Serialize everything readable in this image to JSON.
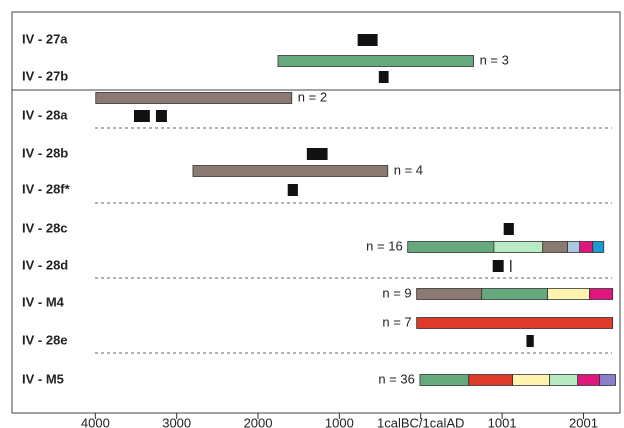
{
  "chart_data": {
    "type": "timeline",
    "xlim": [
      -5000,
      2450
    ],
    "xticks": [
      {
        "value": -4000,
        "label": "4000"
      },
      {
        "value": -3000,
        "label": "3000"
      },
      {
        "value": -2000,
        "label": "2000"
      },
      {
        "value": -1000,
        "label": "1000"
      },
      {
        "value": 0,
        "label": "1calBC/1calAD"
      },
      1001,
      2001
    ],
    "rows": [
      {
        "label": "IV - 27a",
        "dates": [
          [
            -775,
            -530
          ]
        ]
      },
      {
        "label": "IV - 27b",
        "dates": [
          [
            -515,
            -395
          ]
        ]
      },
      {
        "label": "IV - 28a",
        "dates": [
          [
            -3525,
            -3330
          ],
          [
            -3255,
            -3120
          ]
        ]
      },
      {
        "label": "IV - 28b",
        "dates": [
          [
            -1400,
            -1145
          ]
        ]
      },
      {
        "label": "IV - 28f*",
        "dates": [
          [
            -1635,
            -1510
          ]
        ]
      },
      {
        "label": "IV - 28c",
        "dates": [
          [
            1020,
            1145
          ]
        ]
      },
      {
        "label": "IV - 28d",
        "dates": [
          [
            885,
            1020
          ],
          [
            1100,
            1115
          ]
        ]
      },
      {
        "label": "IV - M4",
        "dates": []
      },
      {
        "label": "IV - 28e",
        "dates": [
          [
            1300,
            1390
          ]
        ]
      },
      {
        "label": "IV - M5",
        "dates": []
      }
    ],
    "periods": [
      {
        "label": "n = 3",
        "segments": [
          {
            "start": -1755,
            "end": 650,
            "color": "#66a97c"
          }
        ]
      },
      {
        "label": "n = 2",
        "segments": [
          {
            "start": -3995,
            "end": -1585,
            "color": "#8a7a72"
          }
        ]
      },
      {
        "label": "n = 4",
        "segments": [
          {
            "start": -2800,
            "end": -405,
            "color": "#8a7a72"
          }
        ]
      },
      {
        "label": "n = 16",
        "segments": [
          {
            "start": -160,
            "end": 900,
            "color": "#66a97c"
          },
          {
            "start": 900,
            "end": 1500,
            "color": "#b8eac4"
          },
          {
            "start": 1500,
            "end": 1805,
            "color": "#8a7a72"
          },
          {
            "start": 1805,
            "end": 1955,
            "color": "#a9c9e3"
          },
          {
            "start": 1955,
            "end": 2115,
            "color": "#e0167f"
          },
          {
            "start": 2115,
            "end": 2250,
            "color": "#1b9bd1"
          }
        ]
      },
      {
        "label": "n = 9",
        "segments": [
          {
            "start": -50,
            "end": 750,
            "color": "#8a7a72"
          },
          {
            "start": 750,
            "end": 1560,
            "color": "#66a97c"
          },
          {
            "start": 1560,
            "end": 2075,
            "color": "#fff3b2"
          },
          {
            "start": 2075,
            "end": 2360,
            "color": "#e0167f"
          }
        ]
      },
      {
        "label": "n = 7",
        "segments": [
          {
            "start": -50,
            "end": 2360,
            "color": "#dd3a2a"
          }
        ]
      },
      {
        "label": "n = 36",
        "segments": [
          {
            "start": -10,
            "end": 590,
            "color": "#66a97c"
          },
          {
            "start": 590,
            "end": 1130,
            "color": "#dd3a2a"
          },
          {
            "start": 1130,
            "end": 1585,
            "color": "#fff3b2"
          },
          {
            "start": 1585,
            "end": 1930,
            "color": "#b8eac4"
          },
          {
            "start": 1930,
            "end": 2200,
            "color": "#e0167f"
          },
          {
            "start": 2200,
            "end": 2395,
            "color": "#8b7fcc"
          }
        ]
      }
    ]
  }
}
